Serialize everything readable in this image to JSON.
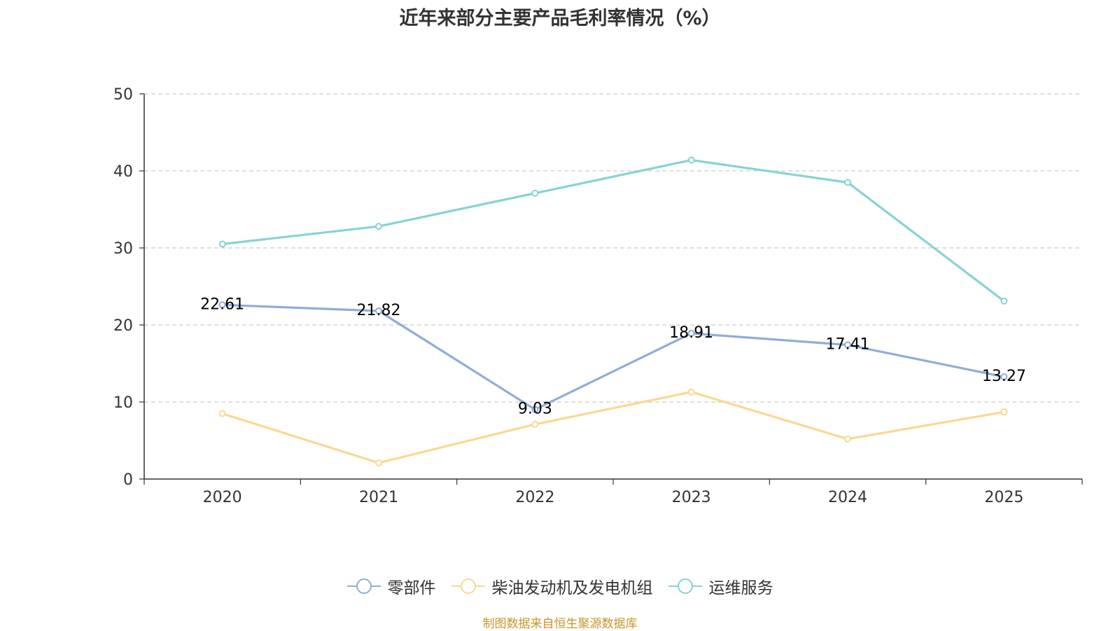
{
  "chart_data": {
    "type": "line",
    "title": "近年来部分主要产品毛利率情况（%）",
    "categories": [
      "2020",
      "2021",
      "2022",
      "2023",
      "2024",
      "2025"
    ],
    "ylim": [
      0,
      50
    ],
    "yticks": [
      0,
      10,
      20,
      30,
      40,
      50
    ],
    "grid": true,
    "legend_position": "bottom",
    "series": [
      {
        "name": "零部件",
        "color": "#8fadd9",
        "values": [
          22.61,
          21.82,
          9.03,
          18.91,
          17.41,
          13.27
        ],
        "show_labels": true
      },
      {
        "name": "柴油发动机及发电机组",
        "color": "#fad892",
        "values": [
          8.5,
          2.1,
          7.1,
          11.3,
          5.2,
          8.7
        ],
        "show_labels": false
      },
      {
        "name": "运维服务",
        "color": "#86d3d3",
        "values": [
          30.5,
          32.8,
          37.1,
          41.4,
          38.5,
          23.1
        ],
        "show_labels": false
      }
    ]
  },
  "source_note": "制图数据来自恒生聚源数据库"
}
